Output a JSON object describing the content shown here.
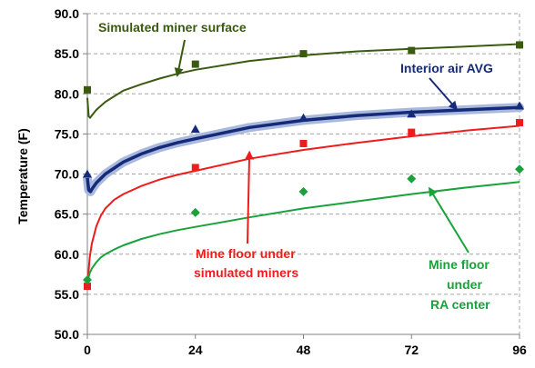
{
  "chart_data": {
    "type": "line",
    "title": "",
    "xlabel": "",
    "ylabel": "Temperature (F)",
    "xlim": [
      0,
      96
    ],
    "ylim": [
      50,
      90
    ],
    "x_ticks": [
      0,
      24,
      48,
      72,
      96
    ],
    "x_tick_labels": [
      "0",
      "24",
      "48",
      "72",
      "96"
    ],
    "y_ticks": [
      50,
      55,
      60,
      65,
      70,
      75,
      80,
      85,
      90
    ],
    "y_tick_labels": [
      "50.0",
      "55.0",
      "60.0",
      "65.0",
      "70.0",
      "75.0",
      "80.0",
      "85.0",
      "90.0"
    ],
    "grid": {
      "horizontal": true,
      "dashed": true,
      "vertical_at": [
        96
      ]
    },
    "series": [
      {
        "name": "Simulated miner surface",
        "color": "#3a5a0f",
        "marker": "square",
        "line_x": [
          0,
          0.3,
          0.6,
          1,
          2,
          4,
          8,
          12,
          16,
          20,
          24,
          36,
          48,
          60,
          72,
          84,
          96
        ],
        "line_y": [
          79.5,
          77.2,
          77.0,
          77.3,
          78.0,
          79.0,
          80.4,
          81.2,
          81.9,
          82.5,
          83.0,
          84.1,
          84.8,
          85.3,
          85.6,
          85.9,
          86.2
        ],
        "points_x": [
          0,
          24,
          48,
          72,
          96
        ],
        "points_y": [
          80.5,
          83.7,
          85.0,
          85.4,
          86.1
        ]
      },
      {
        "name": "Interior air AVG",
        "color": "#152a78",
        "band_color": "#a9b8dd",
        "marker": "triangle",
        "line_x": [
          0,
          0.3,
          0.7,
          1,
          2,
          4,
          8,
          12,
          16,
          20,
          24,
          36,
          48,
          60,
          72,
          84,
          96
        ],
        "line_y": [
          69.5,
          68.0,
          67.8,
          68.1,
          68.9,
          70.0,
          71.5,
          72.5,
          73.3,
          73.9,
          74.4,
          75.8,
          76.7,
          77.3,
          77.7,
          78.0,
          78.3
        ],
        "points_x": [
          0,
          24,
          48,
          72,
          96
        ],
        "points_y": [
          70.0,
          75.6,
          77.0,
          77.5,
          78.5
        ]
      },
      {
        "name": "Mine floor under simulated miners",
        "color": "#ee1c1c",
        "marker": "square",
        "line_x": [
          0,
          0.5,
          1,
          2,
          3,
          4,
          6,
          8,
          12,
          16,
          20,
          24,
          36,
          48,
          60,
          72,
          84,
          96
        ],
        "line_y": [
          55.8,
          59.5,
          61.3,
          63.5,
          64.8,
          65.7,
          66.8,
          67.5,
          68.5,
          69.3,
          69.9,
          70.4,
          71.9,
          73.0,
          73.9,
          74.7,
          75.4,
          76.0
        ],
        "points_x": [
          0,
          24,
          48,
          72,
          96
        ],
        "points_y": [
          56.0,
          70.8,
          73.8,
          75.2,
          76.4
        ]
      },
      {
        "name": "Mine floor under RA center",
        "color": "#19a23c",
        "marker": "diamond",
        "line_x": [
          0,
          0.5,
          1,
          2,
          3,
          4,
          6,
          8,
          12,
          16,
          20,
          24,
          36,
          48,
          60,
          72,
          84,
          96
        ],
        "line_y": [
          56.5,
          57.6,
          58.2,
          59.0,
          59.6,
          60.0,
          60.6,
          61.1,
          61.9,
          62.5,
          63.0,
          63.4,
          64.6,
          65.7,
          66.6,
          67.5,
          68.3,
          69.0
        ],
        "points_x": [
          0,
          24,
          48,
          72,
          96
        ],
        "points_y": [
          56.8,
          65.2,
          67.8,
          69.4,
          70.6
        ]
      }
    ],
    "annotations": [
      {
        "lines": [
          "Simulated miner surface"
        ],
        "color": "#3a5a0f",
        "arrow_to": [
          20,
          82.3
        ]
      },
      {
        "lines": [
          "Interior air AVG"
        ],
        "color": "#152a78",
        "arrow_to": [
          82,
          78.1
        ]
      },
      {
        "lines": [
          "Mine floor under",
          "simulated miners"
        ],
        "color": "#ee1c1c",
        "arrow_to": [
          36,
          72.7
        ]
      },
      {
        "lines": [
          "Mine floor",
          "under",
          "RA center"
        ],
        "color": "#19a23c",
        "arrow_to": [
          76,
          68.2
        ]
      }
    ]
  }
}
